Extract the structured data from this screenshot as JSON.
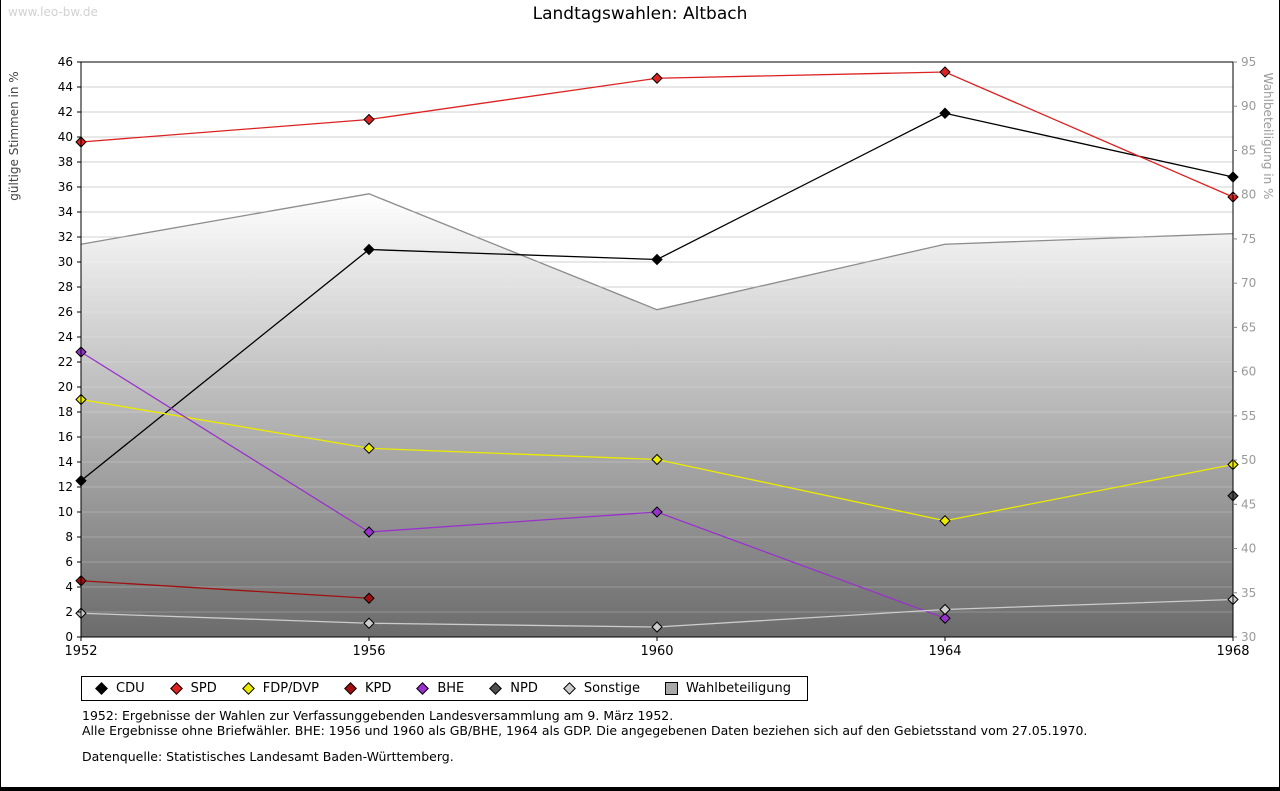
{
  "watermark": "www.leo-bw.de",
  "title": "Landtagswahlen: Altbach",
  "chart_data": {
    "type": "line",
    "x_labels": [
      "1952",
      "1956",
      "1960",
      "1964",
      "1968"
    ],
    "left_axis": {
      "label": "gültige Stimmen in %",
      "min": 0,
      "max": 46,
      "tick_step": 2
    },
    "right_axis": {
      "label": "Wahlbeteiligung in %",
      "min": 30,
      "max": 95,
      "tick_step": 5
    },
    "grid": true,
    "legend_position": "bottom",
    "series": [
      {
        "name": "CDU",
        "color": "#000000",
        "marker": "diamond",
        "axis": "left",
        "values": [
          12.5,
          31.0,
          30.2,
          41.9,
          36.8
        ]
      },
      {
        "name": "SPD",
        "color": "#dd2222",
        "marker": "diamond",
        "axis": "left",
        "values": [
          39.6,
          41.4,
          44.7,
          45.2,
          35.2
        ]
      },
      {
        "name": "FDP/DVP",
        "color": "#ebeb00",
        "marker": "diamond",
        "axis": "left",
        "values": [
          19.0,
          15.1,
          14.2,
          9.3,
          13.8
        ]
      },
      {
        "name": "KPD",
        "color": "#a01010",
        "marker": "diamond",
        "axis": "left",
        "values": [
          4.5,
          3.1,
          null,
          null,
          null
        ]
      },
      {
        "name": "BHE",
        "color": "#9932cc",
        "marker": "diamond",
        "axis": "left",
        "values": [
          22.8,
          8.4,
          10.0,
          1.5,
          null
        ]
      },
      {
        "name": "NPD",
        "color": "#4f4f4f",
        "marker": "diamond",
        "axis": "left",
        "values": [
          null,
          null,
          null,
          null,
          11.3
        ]
      },
      {
        "name": "Sonstige",
        "color": "#cccccc",
        "marker": "diamond",
        "axis": "left",
        "values": [
          1.9,
          1.1,
          0.8,
          2.2,
          3.0
        ]
      }
    ],
    "area_series": {
      "name": "Wahlbeteiligung",
      "axis": "right",
      "line_color": "#8c8c8c",
      "fill_top": "#ffffff",
      "fill_bottom": "#6b6b6b",
      "legend_swatch_color": "#a8a8a8",
      "values": [
        74.4,
        80.1,
        67.0,
        74.4,
        75.6
      ]
    }
  },
  "footnotes": {
    "line1": "1952: Ergebnisse der Wahlen zur Verfassunggebenden Landesversammlung am 9. März 1952.",
    "line2": "Alle Ergebnisse ohne Briefwähler. BHE: 1956 und 1960 als GB/BHE, 1964 als GDP. Die angegebenen Daten beziehen sich auf den Gebietsstand vom 27.05.1970.",
    "source": "Datenquelle: Statistisches Landesamt Baden-Württemberg."
  }
}
